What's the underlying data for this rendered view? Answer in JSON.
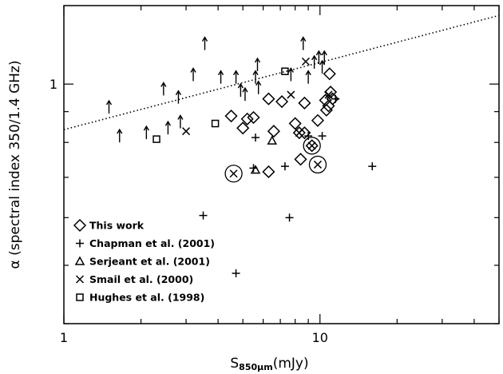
{
  "chart_data": {
    "type": "scatter",
    "title": "",
    "xlabel": "S",
    "xlabel_sub": "850µm",
    "xlabel_unit": "(mJy)",
    "ylabel": "α (spectral index 350/1.4 GHz)",
    "xscale": "log",
    "yscale": "log",
    "xlim": [
      1,
      50
    ],
    "ylim": [
      0.4,
      1.35
    ],
    "x_ticks": [
      {
        "value": 1,
        "label": "1"
      },
      {
        "value": 10,
        "label": "10"
      }
    ],
    "y_ticks": [
      {
        "value": 1,
        "label": "1"
      }
    ],
    "legend_position": "bottom-left",
    "reference_line": {
      "style": "dotted",
      "x": [
        1,
        50
      ],
      "y": [
        0.84,
        1.3
      ]
    },
    "series": [
      {
        "name": "This work",
        "marker": "diamond",
        "points": [
          [
            4.5,
            0.885
          ],
          [
            5.0,
            0.845
          ],
          [
            5.2,
            0.875
          ],
          [
            5.5,
            0.88
          ],
          [
            6.3,
            0.945
          ],
          [
            6.6,
            0.835
          ],
          [
            7.1,
            0.935
          ],
          [
            6.3,
            0.715
          ],
          [
            8.0,
            0.86
          ],
          [
            8.3,
            0.83
          ],
          [
            8.7,
            0.83
          ],
          [
            8.4,
            0.75
          ],
          [
            8.7,
            0.93
          ],
          [
            9.3,
            0.79
          ],
          [
            9.8,
            0.87
          ],
          [
            10.5,
            0.94
          ],
          [
            10.8,
            0.92
          ],
          [
            11.0,
            0.97
          ],
          [
            11.2,
            0.945
          ],
          [
            10.9,
            1.04
          ],
          [
            10.6,
            0.905
          ]
        ]
      },
      {
        "name": "Chapman et al. (2001)",
        "marker": "plus",
        "points": [
          [
            5.6,
            0.815
          ],
          [
            5.5,
            0.725
          ],
          [
            7.3,
            0.73
          ],
          [
            9.0,
            0.82
          ],
          [
            10.2,
            0.82
          ],
          [
            16.0,
            0.73
          ],
          [
            3.5,
            0.605
          ],
          [
            7.6,
            0.6
          ],
          [
            4.7,
            0.485
          ],
          [
            11.5,
            0.945
          ]
        ],
        "limits": [
          [
            1.5,
            0.91
          ],
          [
            1.65,
            0.815
          ],
          [
            2.1,
            0.825
          ],
          [
            2.45,
            0.975
          ],
          [
            2.55,
            0.84
          ],
          [
            2.8,
            0.945
          ],
          [
            2.85,
            0.86
          ],
          [
            3.2,
            1.03
          ],
          [
            3.55,
            1.16
          ],
          [
            4.1,
            1.02
          ],
          [
            4.7,
            1.02
          ],
          [
            4.9,
            0.97
          ],
          [
            5.1,
            0.955
          ],
          [
            5.6,
            1.02
          ],
          [
            5.7,
            1.07
          ],
          [
            5.75,
            0.98
          ],
          [
            7.7,
            1.03
          ],
          [
            8.6,
            1.16
          ],
          [
            9.0,
            1.02
          ],
          [
            9.5,
            1.08
          ],
          [
            9.9,
            1.1
          ],
          [
            10.2,
            1.06
          ],
          [
            10.4,
            1.1
          ]
        ]
      },
      {
        "name": "Serjeant et al. (2001)",
        "marker": "triangle",
        "points": [
          [
            6.5,
            0.805
          ],
          [
            5.6,
            0.72
          ]
        ]
      },
      {
        "name": "Smail et al. (2000)",
        "marker": "cross",
        "points": [
          [
            3.0,
            0.835
          ],
          [
            7.7,
            0.96
          ],
          [
            10.8,
            0.96
          ],
          [
            8.3,
            0.83
          ],
          [
            8.8,
            1.09
          ]
        ],
        "circled_points": [
          [
            4.6,
            0.71
          ],
          [
            9.3,
            0.79
          ],
          [
            9.8,
            0.735
          ]
        ]
      },
      {
        "name": "Hughes et al. (1998)",
        "marker": "square",
        "points": [
          [
            2.3,
            0.81
          ],
          [
            3.9,
            0.86
          ],
          [
            7.3,
            1.05
          ]
        ]
      }
    ]
  }
}
